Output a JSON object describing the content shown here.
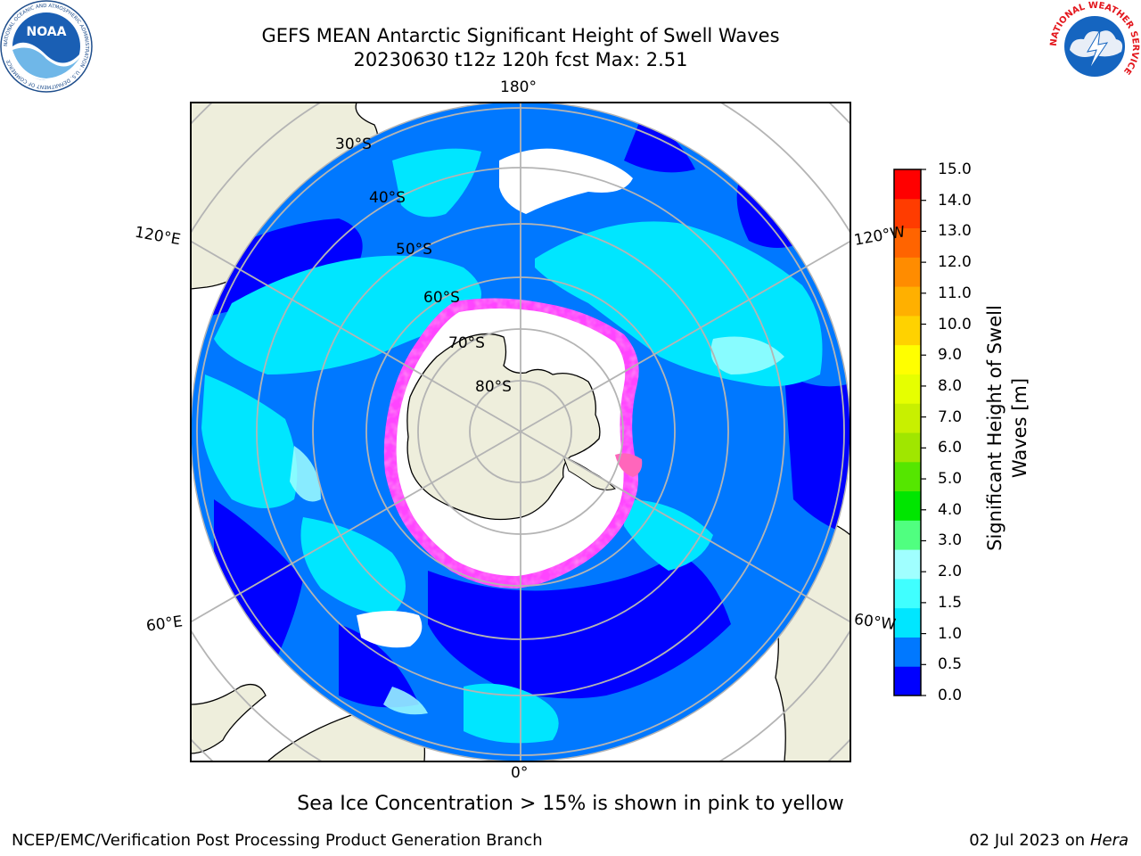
{
  "header": {
    "title_line1": "GEFS MEAN Antarctic Significant Height of Swell Waves",
    "title_line2": "20230630 t12z 120h fcst   Max: 2.51"
  },
  "logos": {
    "noaa_text": "NOAA",
    "noaa_ring": "NATIONAL OCEANIC AND ATMOSPHERIC ADMINISTRATION · U.S. DEPARTMENT OF COMMERCE",
    "nws_ring": "NATIONAL WEATHER SERVICE"
  },
  "map": {
    "projection": "south-polar-stereographic",
    "longitude_labels": {
      "top": "180°",
      "bottom": "0°",
      "upper_left": "120°E",
      "upper_right": "120°W",
      "lower_left": "60°E",
      "lower_right": "60°W"
    },
    "latitude_labels": [
      "30°S",
      "40°S",
      "50°S",
      "60°S",
      "70°S",
      "80°S"
    ],
    "sea_ice_colors": [
      "#ff44ff",
      "#ff66bb",
      "#ffcc44"
    ]
  },
  "colorbar": {
    "label": "Significant Height of Swell Waves [m]",
    "ticks": [
      "15.0",
      "14.0",
      "13.0",
      "12.0",
      "11.0",
      "10.0",
      "9.0",
      "8.0",
      "7.0",
      "6.0",
      "5.0",
      "4.0",
      "3.0",
      "2.0",
      "1.5",
      "1.0",
      "0.5",
      "0.0"
    ],
    "colors_bottom_to_top": [
      "#0000ff",
      "#0078ff",
      "#00e6ff",
      "#40ffff",
      "#a0ffff",
      "#50ff80",
      "#00e600",
      "#55e600",
      "#a0e600",
      "#c8f000",
      "#e6ff00",
      "#ffff00",
      "#ffd200",
      "#ffb000",
      "#ff8c00",
      "#ff6400",
      "#ff3c00",
      "#ff0000"
    ]
  },
  "footer": {
    "note": "Sea Ice Concentration > 15% is shown in pink to yellow",
    "credit_left": "NCEP/EMC/Verification Post Processing Product Generation Branch",
    "credit_date": "02 Jul 2023 on ",
    "credit_host": "Hera"
  }
}
